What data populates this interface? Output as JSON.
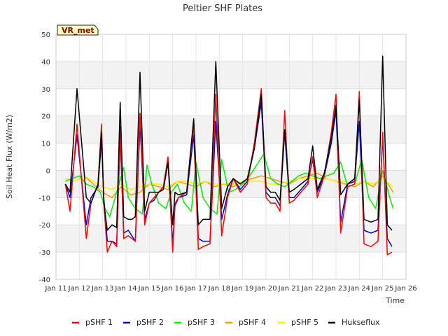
{
  "chart_data": {
    "type": "line",
    "title": "Peltier SHF Plates",
    "xlabel": "Time",
    "ylabel": "Soil Heat Flux (W/m2)",
    "ylim": [
      -40,
      50
    ],
    "xlim": [
      11,
      26
    ],
    "x_tick_labels": [
      "Jan 11",
      "Jan 12",
      "Jan 13",
      "Jan 14",
      "Jan 15",
      "Jan 16",
      "Jan 17",
      "Jan 18",
      "Jan 19",
      "Jan 20",
      "Jan 21",
      "Jan 22",
      "Jan 23",
      "Jan 24",
      "Jan 25",
      "Jan 26"
    ],
    "y_ticks": [
      -40,
      -30,
      -20,
      -10,
      0,
      10,
      20,
      30,
      40,
      50
    ],
    "grid": true,
    "legend_position": "bottom",
    "badge": "VR_met",
    "series": [
      {
        "name": "pSHF 1",
        "color": "#ff0000",
        "x": [
          11.4,
          11.6,
          11.9,
          12.3,
          12.5,
          12.8,
          12.95,
          13.05,
          13.2,
          13.4,
          13.6,
          13.75,
          13.9,
          14.1,
          14.25,
          14.4,
          14.6,
          14.8,
          15.0,
          15.2,
          15.4,
          15.6,
          15.8,
          16.0,
          16.1,
          16.25,
          16.6,
          16.9,
          17.1,
          17.3,
          17.6,
          17.85,
          18.1,
          18.35,
          18.6,
          18.9,
          19.2,
          19.5,
          19.8,
          20.0,
          20.2,
          20.4,
          20.6,
          20.8,
          21.0,
          21.2,
          21.5,
          21.8,
          22.0,
          22.2,
          22.5,
          22.8,
          23.0,
          23.2,
          23.5,
          23.8,
          24.0,
          24.2,
          24.5,
          24.8,
          25.0,
          25.2,
          25.4
        ],
        "y": [
          -5,
          -15,
          17,
          -25,
          -12,
          -5,
          17,
          -12,
          -30,
          -26,
          -28,
          16,
          -25,
          -24,
          -25,
          -26,
          21,
          -20,
          -12,
          -10,
          -8,
          -6,
          5,
          -30,
          -12,
          -10,
          -8,
          17,
          -29,
          -28,
          -27,
          28,
          -24,
          -10,
          -3,
          -8,
          -5,
          10,
          30,
          -10,
          -12,
          -12,
          -15,
          22,
          -12,
          -11,
          -8,
          -5,
          5,
          -10,
          -2,
          14,
          28,
          -23,
          -6,
          -5,
          29,
          -27,
          -28,
          -26,
          14,
          -31,
          -30
        ]
      },
      {
        "name": "pSHF 2",
        "color": "#0000cc",
        "x": [
          11.4,
          11.6,
          11.9,
          12.3,
          12.5,
          12.8,
          12.95,
          13.05,
          13.2,
          13.4,
          13.6,
          13.75,
          13.9,
          14.1,
          14.25,
          14.4,
          14.6,
          14.8,
          15.0,
          15.2,
          15.4,
          15.6,
          15.8,
          16.0,
          16.1,
          16.25,
          16.6,
          16.9,
          17.1,
          17.3,
          17.6,
          17.85,
          18.1,
          18.35,
          18.6,
          18.9,
          19.2,
          19.5,
          19.8,
          20.0,
          20.2,
          20.4,
          20.6,
          20.8,
          21.0,
          21.2,
          21.5,
          21.8,
          22.0,
          22.2,
          22.5,
          22.8,
          23.0,
          23.2,
          23.5,
          23.8,
          24.0,
          24.2,
          24.5,
          24.8,
          25.0,
          25.2,
          25.4
        ],
        "y": [
          -5,
          -10,
          13,
          -20,
          -10,
          -6,
          11,
          -10,
          -26,
          -26,
          -27,
          13,
          -23,
          -22,
          -24,
          -26,
          17,
          -18,
          -12,
          -11,
          -8,
          -7,
          3,
          -27,
          -13,
          -10,
          -9,
          13,
          -25,
          -26,
          -26,
          18,
          -18,
          -9,
          -3,
          -7,
          -4,
          8,
          25,
          -8,
          -10,
          -10,
          -13,
          14,
          -10,
          -10,
          -7,
          -4,
          4,
          -8,
          -2,
          10,
          22,
          -19,
          -5,
          -4,
          18,
          -22,
          -23,
          -22,
          12,
          -25,
          -28
        ]
      },
      {
        "name": "pSHF 3",
        "color": "#00ee00",
        "x": [
          11.4,
          11.7,
          12.0,
          12.3,
          12.6,
          12.9,
          13.1,
          13.3,
          13.6,
          13.9,
          14.1,
          14.4,
          14.7,
          14.9,
          15.1,
          15.4,
          15.7,
          15.95,
          16.2,
          16.5,
          16.8,
          17.0,
          17.3,
          17.6,
          17.9,
          18.1,
          18.4,
          18.7,
          19.0,
          19.3,
          19.6,
          19.9,
          20.2,
          20.5,
          20.8,
          21.1,
          21.4,
          21.7,
          22.0,
          22.3,
          22.6,
          22.9,
          23.2,
          23.5,
          23.8,
          24.1,
          24.4,
          24.7,
          25.0,
          25.3,
          25.45
        ],
        "y": [
          -4,
          -3,
          -2,
          -5,
          -6,
          -8,
          -14,
          -17,
          -8,
          1,
          -10,
          -14,
          -16,
          2,
          -5,
          -12,
          -14,
          -8,
          -5,
          -12,
          -15,
          3,
          -10,
          -14,
          -16,
          4,
          -8,
          -7,
          -5,
          -2,
          2,
          6,
          -3,
          -5,
          -6,
          -4,
          -2,
          -1,
          -2,
          -3,
          -2,
          -1,
          3,
          -6,
          -5,
          4,
          -10,
          -14,
          0,
          -10,
          -14
        ]
      },
      {
        "name": "pSHF 4",
        "color": "#ff9900",
        "x": [
          11.4,
          11.8,
          12.2,
          12.6,
          13.0,
          13.4,
          13.8,
          14.2,
          14.6,
          15.0,
          15.4,
          15.8,
          16.2,
          16.6,
          17.0,
          17.4,
          17.8,
          18.2,
          18.6,
          19.0,
          19.4,
          19.8,
          20.2,
          20.6,
          21.0,
          21.4,
          21.8,
          22.2,
          22.6,
          23.0,
          23.4,
          23.8,
          24.2,
          24.6,
          25.0,
          25.45
        ],
        "y": [
          -3,
          -4,
          -2,
          -5,
          -8,
          -10,
          -6,
          -9,
          -8,
          -5,
          -6,
          -7,
          -4,
          -5,
          -6,
          -4,
          -6,
          -5,
          -6,
          -4,
          -3,
          -2,
          -3,
          -4,
          -5,
          -3,
          -2,
          -1,
          -3,
          -4,
          -5,
          -6,
          -4,
          -6,
          -2,
          -8
        ]
      },
      {
        "name": "pSHF 5",
        "color": "#ffee00",
        "x": [
          11.4,
          11.8,
          12.2,
          12.6,
          13.0,
          13.4,
          13.8,
          14.2,
          14.6,
          15.0,
          15.4,
          15.8,
          16.2,
          16.6,
          17.0,
          17.4,
          17.8,
          18.2,
          18.6,
          19.0,
          19.4,
          19.8,
          20.2,
          20.6,
          21.0,
          21.4,
          21.8,
          22.2,
          22.6,
          23.0,
          23.4,
          23.8,
          24.2,
          24.6,
          25.0,
          25.45
        ],
        "y": [
          -3,
          -4,
          -2,
          -4,
          -6,
          -7,
          -5,
          -7,
          -6,
          -5,
          -5,
          -6,
          -4,
          -4,
          -5,
          -4,
          -5,
          -5,
          -5,
          -4,
          -4,
          -4,
          -5,
          -5,
          -4,
          -3,
          -3,
          -3,
          -3,
          -4,
          -4,
          -5,
          -4,
          -5,
          -3,
          -6
        ]
      },
      {
        "name": "Hukseflux",
        "color": "#000000",
        "x": [
          11.4,
          11.6,
          11.9,
          12.3,
          12.5,
          12.8,
          12.95,
          13.05,
          13.2,
          13.4,
          13.6,
          13.75,
          13.9,
          14.1,
          14.25,
          14.4,
          14.6,
          14.8,
          15.0,
          15.2,
          15.4,
          15.6,
          15.8,
          16.0,
          16.1,
          16.25,
          16.6,
          16.9,
          17.1,
          17.3,
          17.6,
          17.85,
          18.1,
          18.35,
          18.6,
          18.9,
          19.2,
          19.5,
          19.8,
          20.0,
          20.2,
          20.4,
          20.6,
          20.8,
          21.0,
          21.2,
          21.5,
          21.8,
          22.0,
          22.2,
          22.5,
          22.8,
          23.0,
          23.2,
          23.5,
          23.8,
          24.0,
          24.2,
          24.5,
          24.8,
          25.0,
          25.2,
          25.4
        ],
        "y": [
          -5,
          -8,
          30,
          -10,
          -12,
          -5,
          14,
          -12,
          -22,
          -20,
          -21,
          25,
          -17,
          -18,
          -18,
          -17,
          36,
          -15,
          -8,
          -8,
          -8,
          -7,
          3,
          -20,
          -8,
          -9,
          -8,
          19,
          -20,
          -18,
          -18,
          40,
          -14,
          -6,
          -3,
          -5,
          -3,
          8,
          28,
          -6,
          -8,
          -8,
          -11,
          15,
          -8,
          -7,
          -5,
          -3,
          9,
          -7,
          -1,
          12,
          24,
          -9,
          -5,
          -3,
          26,
          -18,
          -19,
          -18,
          42,
          -20,
          -22
        ]
      }
    ]
  }
}
